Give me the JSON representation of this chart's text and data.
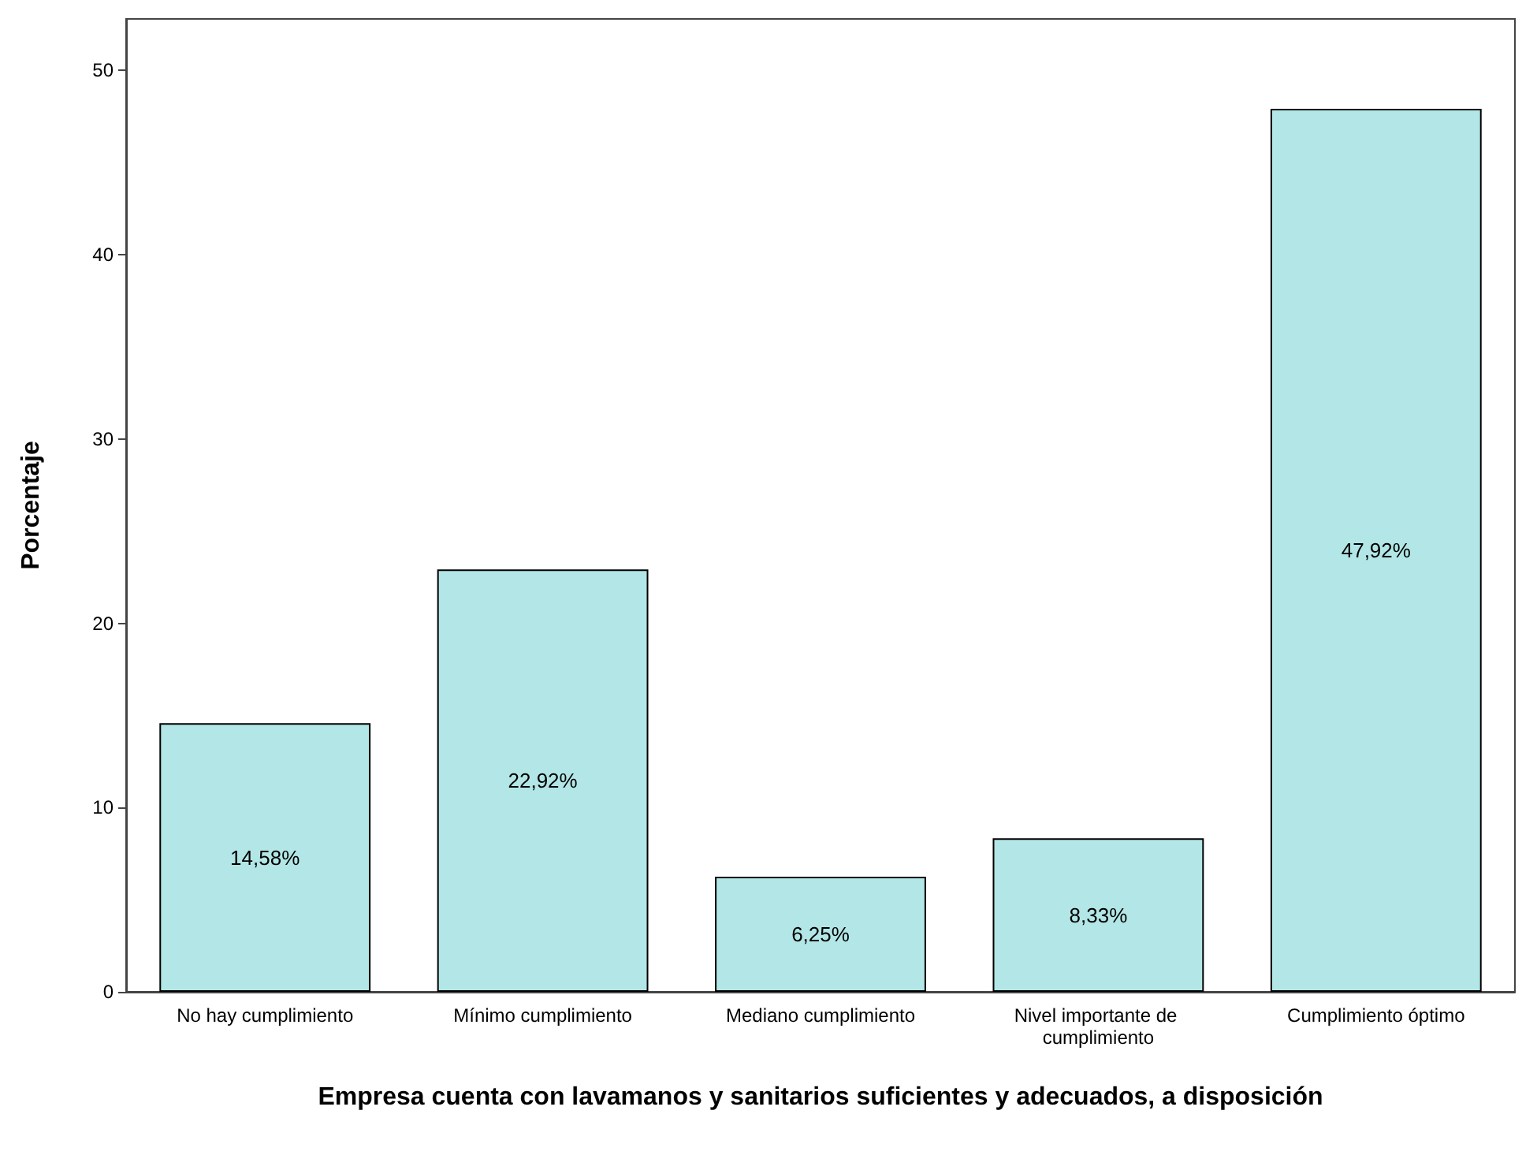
{
  "chart_data": {
    "type": "bar",
    "xlabel": "Empresa cuenta con lavamanos y sanitarios suficientes y adecuados, a disposición",
    "ylabel": "Porcentaje",
    "categories": [
      "No hay cumplimiento",
      "Mínimo cumplimiento",
      "Mediano cumplimiento",
      "Nivel importante de cumplimiento",
      "Cumplimiento óptimo"
    ],
    "values": [
      14.58,
      22.92,
      6.25,
      8.33,
      47.92
    ],
    "value_labels": [
      "14,58%",
      "22,92%",
      "6,25%",
      "8,33%",
      "47,92%"
    ],
    "color": "#b3e6e6",
    "ylim": [
      0,
      52.8
    ],
    "yticks": [
      0,
      10,
      20,
      30,
      40,
      50
    ],
    "grid": false
  }
}
